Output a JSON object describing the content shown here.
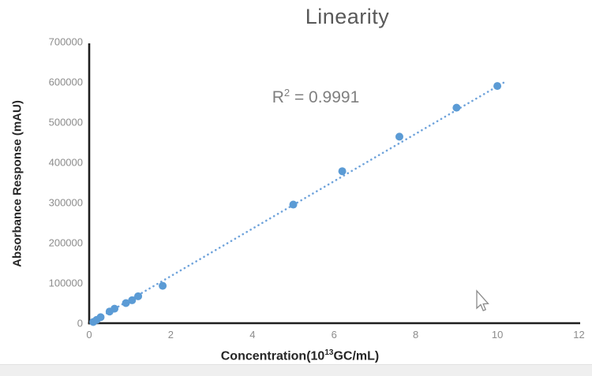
{
  "chart_data": {
    "type": "scatter",
    "title": "Linearity",
    "ylabel": "Absorbance Response (mAU)",
    "xlabel_parts": [
      "Concentration(10",
      "13",
      "GC/mL)"
    ],
    "annotation_parts": [
      "R",
      "2",
      " = 0.9991"
    ],
    "r_squared": 0.9991,
    "xlim": [
      0,
      12
    ],
    "ylim": [
      0,
      700000
    ],
    "xticks": [
      0,
      2,
      4,
      6,
      8,
      10,
      12
    ],
    "yticks": [
      0,
      100000,
      200000,
      300000,
      400000,
      500000,
      600000,
      700000
    ],
    "grid": false,
    "legend": null,
    "points": [
      {
        "x": 0.1,
        "y": 3000
      },
      {
        "x": 0.18,
        "y": 8000
      },
      {
        "x": 0.28,
        "y": 15000
      },
      {
        "x": 0.5,
        "y": 29000
      },
      {
        "x": 0.62,
        "y": 36000
      },
      {
        "x": 0.9,
        "y": 50000
      },
      {
        "x": 1.05,
        "y": 57000
      },
      {
        "x": 1.2,
        "y": 67000
      },
      {
        "x": 1.8,
        "y": 93000
      },
      {
        "x": 5.0,
        "y": 295000
      },
      {
        "x": 6.2,
        "y": 378000
      },
      {
        "x": 7.6,
        "y": 464000
      },
      {
        "x": 9.0,
        "y": 536000
      },
      {
        "x": 10.0,
        "y": 590000
      }
    ],
    "trendline": {
      "style": "dotted",
      "x1": 0.05,
      "y1": 2000,
      "x2": 10.15,
      "y2": 598000
    },
    "marker_color": "#5B9BD5",
    "line_color": "#6FA3DB",
    "axis_color": "#1f1f1f",
    "tick_label_color": "#8c8c8c",
    "title_color": "#595959"
  }
}
